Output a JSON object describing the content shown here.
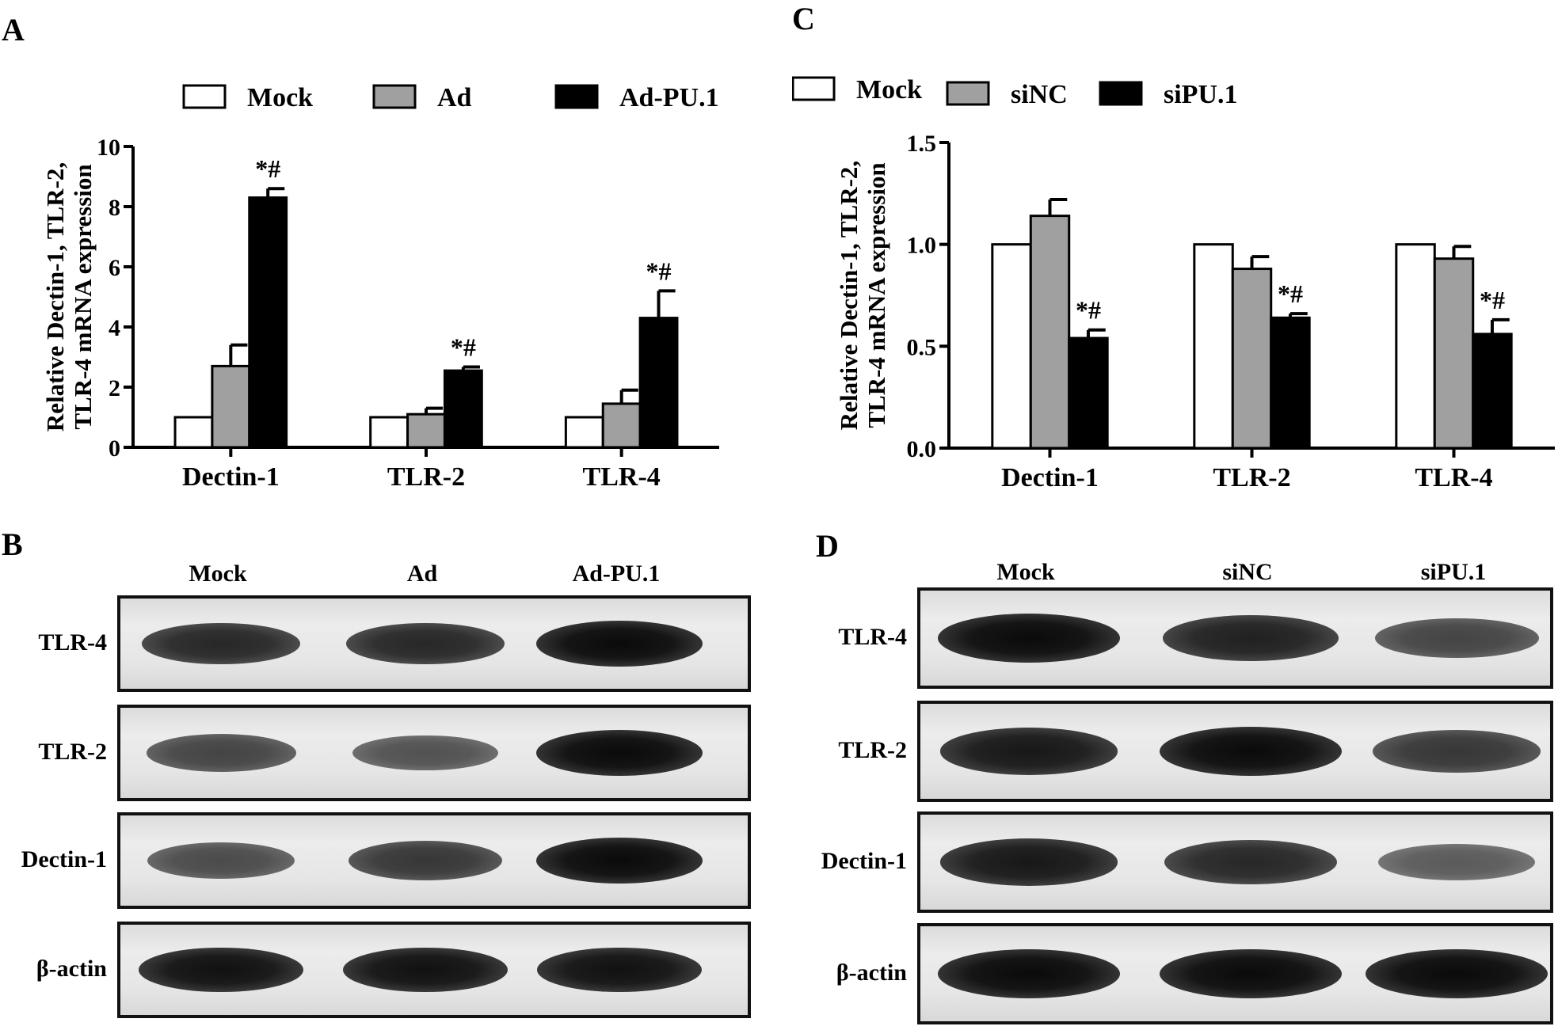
{
  "panels": {
    "A": {
      "letter": "A"
    },
    "B": {
      "letter": "B"
    },
    "C": {
      "letter": "C"
    },
    "D": {
      "letter": "D"
    }
  },
  "chart_data": [
    {
      "panel": "A",
      "type": "bar",
      "title": "",
      "xlabel": "",
      "ylabel_lines": [
        "Relative Dectin-1, TLR-2,",
        "TLR-4 mRNA expression"
      ],
      "categories": [
        "Dectin-1",
        "TLR-2",
        "TLR-4"
      ],
      "ylim": [
        0,
        10
      ],
      "yticks": [
        "0",
        "2",
        "4",
        "6",
        "8",
        "10"
      ],
      "legend_position": "top",
      "series": [
        {
          "name": "Mock",
          "color": "#ffffff",
          "values": [
            1.0,
            1.0,
            1.0
          ],
          "errors": [
            0,
            0,
            0
          ]
        },
        {
          "name": "Ad",
          "color": "#a0a0a0",
          "values": [
            2.7,
            1.1,
            1.45
          ],
          "errors": [
            0.7,
            0.2,
            0.45
          ]
        },
        {
          "name": "Ad-PU.1",
          "color": "#000000",
          "values": [
            8.3,
            2.55,
            4.3
          ],
          "errors": [
            0.3,
            0.12,
            0.9
          ]
        }
      ],
      "annotations": [
        "*#",
        "*#",
        "*#"
      ],
      "annotation_series": "Ad-PU.1"
    },
    {
      "panel": "C",
      "type": "bar",
      "title": "",
      "xlabel": "",
      "ylabel_lines": [
        "Relative Dectin-1, TLR-2,",
        "TLR-4 mRNA expression"
      ],
      "categories": [
        "Dectin-1",
        "TLR-2",
        "TLR-4"
      ],
      "ylim": [
        0,
        1.5
      ],
      "yticks": [
        "0.0",
        "0.5",
        "1.0",
        "1.5"
      ],
      "legend_position": "top",
      "series": [
        {
          "name": "Mock",
          "color": "#ffffff",
          "values": [
            1.0,
            1.0,
            1.0
          ],
          "errors": [
            0,
            0,
            0
          ]
        },
        {
          "name": "siNC",
          "color": "#a0a0a0",
          "values": [
            1.14,
            0.88,
            0.93
          ],
          "errors": [
            0.08,
            0.06,
            0.06
          ]
        },
        {
          "name": "siPU.1",
          "color": "#000000",
          "values": [
            0.54,
            0.64,
            0.56
          ],
          "errors": [
            0.04,
            0.02,
            0.07
          ]
        }
      ],
      "annotations": [
        "*#",
        "*#",
        "*#"
      ],
      "annotation_series": "siPU.1"
    }
  ],
  "blots": {
    "B": {
      "lanes": [
        "Mock",
        "Ad",
        "Ad-PU.1"
      ],
      "rows": [
        {
          "label": "TLR-4",
          "intensities": [
            0.8,
            0.8,
            1.0
          ]
        },
        {
          "label": "TLR-2",
          "intensities": [
            0.6,
            0.5,
            1.0
          ]
        },
        {
          "label": "Dectin-1",
          "intensities": [
            0.55,
            0.7,
            1.0
          ]
        },
        {
          "label": "β-actin",
          "intensities": [
            0.95,
            0.95,
            0.95
          ]
        }
      ]
    },
    "D": {
      "lanes": [
        "Mock",
        "siNC",
        "siPU.1"
      ],
      "rows": [
        {
          "label": "TLR-4",
          "intensities": [
            1.0,
            0.85,
            0.6
          ]
        },
        {
          "label": "TLR-2",
          "intensities": [
            0.9,
            1.0,
            0.7
          ]
        },
        {
          "label": "Dectin-1",
          "intensities": [
            0.9,
            0.8,
            0.45
          ]
        },
        {
          "label": "β-actin",
          "intensities": [
            1.0,
            1.0,
            1.0
          ]
        }
      ]
    }
  }
}
